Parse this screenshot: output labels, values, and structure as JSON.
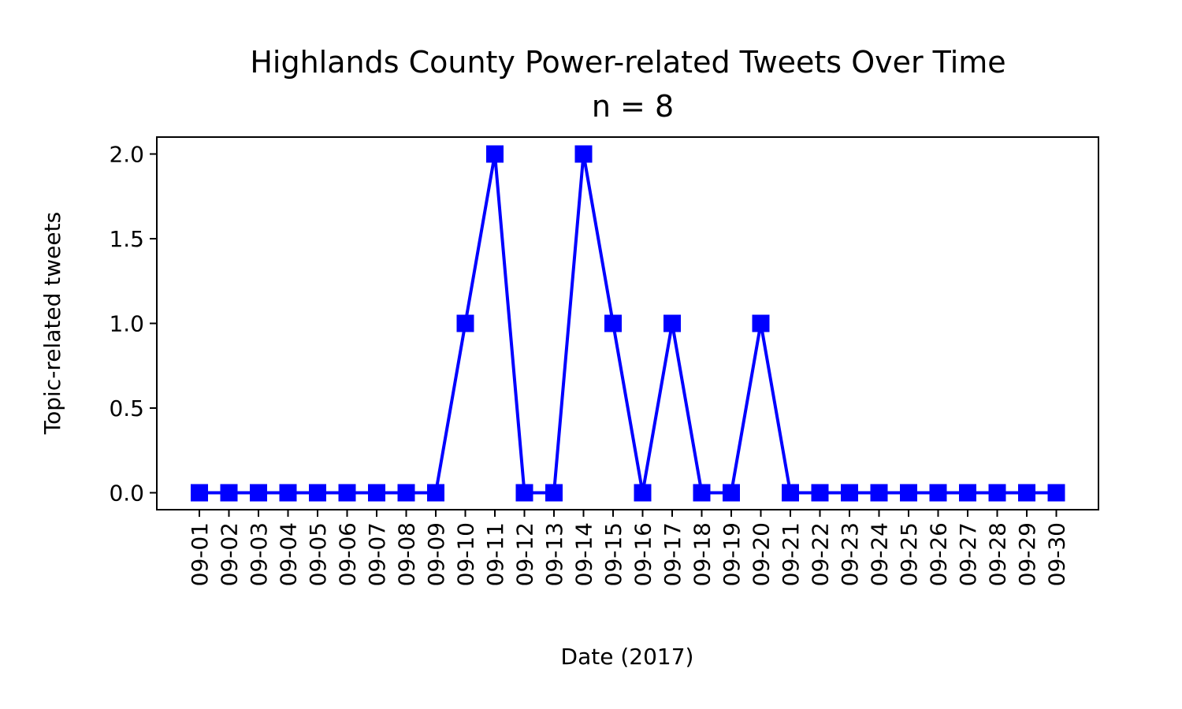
{
  "chart_data": {
    "type": "line",
    "title": "Highlands County Power-related Tweets Over Time",
    "subtitle": "n = 8",
    "xlabel": "Date (2017)",
    "ylabel": "Topic-related tweets",
    "categories": [
      "09-01",
      "09-02",
      "09-03",
      "09-04",
      "09-05",
      "09-06",
      "09-07",
      "09-08",
      "09-09",
      "09-10",
      "09-11",
      "09-12",
      "09-13",
      "09-14",
      "09-15",
      "09-16",
      "09-17",
      "09-18",
      "09-19",
      "09-20",
      "09-21",
      "09-22",
      "09-23",
      "09-24",
      "09-25",
      "09-26",
      "09-27",
      "09-28",
      "09-29",
      "09-30"
    ],
    "values": [
      0,
      0,
      0,
      0,
      0,
      0,
      0,
      0,
      0,
      1,
      2,
      0,
      0,
      2,
      1,
      0,
      1,
      0,
      0,
      1,
      0,
      0,
      0,
      0,
      0,
      0,
      0,
      0,
      0,
      0
    ],
    "yticks": [
      "0.0",
      "0.5",
      "1.0",
      "1.5",
      "2.0"
    ],
    "ylim": [
      -0.1,
      2.1
    ],
    "grid": false,
    "color": "#0000ff",
    "marker": "square"
  }
}
